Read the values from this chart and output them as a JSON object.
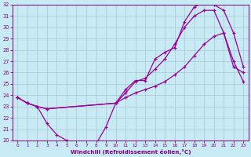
{
  "xlabel": "Windchill (Refroidissement éolien,°C)",
  "xlim": [
    -0.5,
    23.5
  ],
  "ylim": [
    20,
    32
  ],
  "xticks": [
    0,
    1,
    2,
    3,
    4,
    5,
    6,
    7,
    8,
    9,
    10,
    11,
    12,
    13,
    14,
    15,
    16,
    17,
    18,
    19,
    20,
    21,
    22,
    23
  ],
  "yticks": [
    20,
    21,
    22,
    23,
    24,
    25,
    26,
    27,
    28,
    29,
    30,
    31,
    32
  ],
  "background_color": "#c8eaf4",
  "grid_color": "#a0c8d8",
  "line_color": "#990099",
  "curve1_x": [
    0,
    1,
    2,
    3,
    4,
    5,
    6,
    7,
    8,
    9,
    10,
    11,
    12,
    13,
    14,
    15,
    16,
    17,
    18,
    19,
    20,
    21,
    22,
    23
  ],
  "curve1_y": [
    23.8,
    23.3,
    23.0,
    21.5,
    20.5,
    20.0,
    19.8,
    19.7,
    19.7,
    21.2,
    23.3,
    24.5,
    25.3,
    25.3,
    27.2,
    27.8,
    28.2,
    30.5,
    31.8,
    32.2,
    32.0,
    31.5,
    29.5,
    26.5
  ],
  "curve2_x": [
    0,
    1,
    2,
    3,
    10,
    11,
    12,
    13,
    14,
    15,
    16,
    17,
    18,
    19,
    20,
    21,
    22,
    23
  ],
  "curve2_y": [
    23.8,
    23.3,
    23.0,
    22.8,
    23.3,
    24.2,
    25.2,
    25.5,
    26.3,
    27.2,
    28.5,
    30.0,
    31.0,
    31.5,
    31.5,
    29.5,
    26.5,
    26.0
  ],
  "curve3_x": [
    0,
    1,
    2,
    3,
    10,
    11,
    12,
    13,
    14,
    15,
    16,
    17,
    18,
    19,
    20,
    21,
    22,
    23
  ],
  "curve3_y": [
    23.8,
    23.3,
    23.0,
    22.8,
    23.3,
    23.8,
    24.2,
    24.5,
    24.8,
    25.2,
    25.8,
    26.5,
    27.5,
    28.5,
    29.2,
    29.5,
    27.0,
    25.2
  ]
}
